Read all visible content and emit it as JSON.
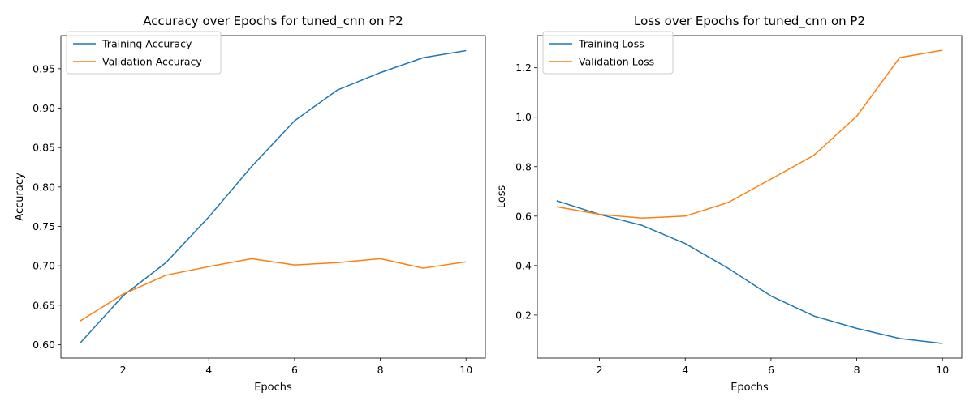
{
  "colors": {
    "training": "#1f77b4",
    "validation": "#ff7f0e"
  },
  "chart_data": [
    {
      "type": "line",
      "title": "Accuracy over Epochs for tuned_cnn on P2",
      "xlabel": "Epochs",
      "ylabel": "Accuracy",
      "xlim": [
        0.55,
        10.45
      ],
      "ylim": [
        0.583,
        0.992
      ],
      "xticks": [
        2,
        4,
        6,
        8,
        10
      ],
      "xtick_labels": [
        "2",
        "4",
        "6",
        "8",
        "10"
      ],
      "yticks": [
        0.6,
        0.65,
        0.7,
        0.75,
        0.8,
        0.85,
        0.9,
        0.95
      ],
      "ytick_labels": [
        "0.60",
        "0.65",
        "0.70",
        "0.75",
        "0.80",
        "0.85",
        "0.90",
        "0.95"
      ],
      "grid": false,
      "legend_position": "top-left",
      "x": [
        1,
        2,
        3,
        4,
        5,
        6,
        7,
        8,
        9,
        10
      ],
      "series": [
        {
          "name": "Training Accuracy",
          "color": "#1f77b4",
          "values": [
            0.602,
            0.662,
            0.704,
            0.762,
            0.826,
            0.884,
            0.923,
            0.945,
            0.964,
            0.973
          ]
        },
        {
          "name": "Validation Accuracy",
          "color": "#ff7f0e",
          "values": [
            0.63,
            0.664,
            0.688,
            0.699,
            0.709,
            0.701,
            0.704,
            0.709,
            0.697,
            0.705
          ]
        }
      ]
    },
    {
      "type": "line",
      "title": "Loss over Epochs for tuned_cnn on P2",
      "xlabel": "Epochs",
      "ylabel": "Loss",
      "xlim": [
        0.55,
        10.45
      ],
      "ylim": [
        0.026,
        1.33
      ],
      "xticks": [
        2,
        4,
        6,
        8,
        10
      ],
      "xtick_labels": [
        "2",
        "4",
        "6",
        "8",
        "10"
      ],
      "yticks": [
        0.2,
        0.4,
        0.6,
        0.8,
        1.0,
        1.2
      ],
      "ytick_labels": [
        "0.2",
        "0.4",
        "0.6",
        "0.8",
        "1.0",
        "1.2"
      ],
      "grid": false,
      "legend_position": "top-left",
      "x": [
        1,
        2,
        3,
        4,
        5,
        6,
        7,
        8,
        9,
        10
      ],
      "series": [
        {
          "name": "Training Loss",
          "color": "#1f77b4",
          "values": [
            0.662,
            0.607,
            0.562,
            0.489,
            0.389,
            0.277,
            0.196,
            0.146,
            0.105,
            0.085
          ]
        },
        {
          "name": "Validation Loss",
          "color": "#ff7f0e",
          "values": [
            0.638,
            0.607,
            0.592,
            0.6,
            0.655,
            0.75,
            0.846,
            1.004,
            1.241,
            1.271
          ]
        }
      ]
    }
  ]
}
